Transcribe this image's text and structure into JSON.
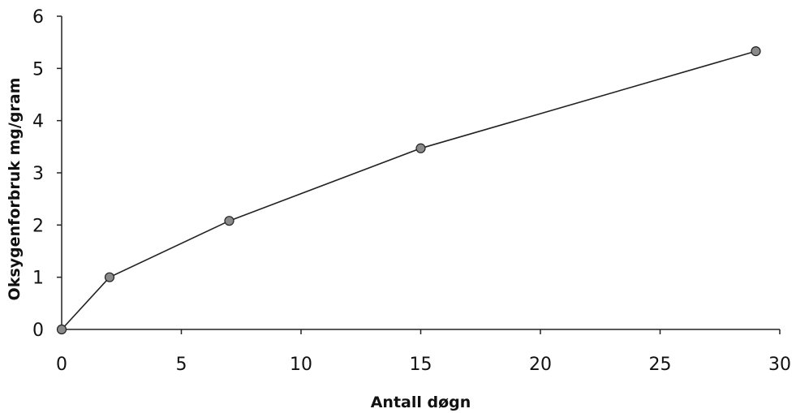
{
  "chart_data": {
    "type": "line",
    "title": "",
    "xlabel": "Antall døgn",
    "ylabel": "Oksygenforbruk mg/gram",
    "xlim": [
      0,
      30
    ],
    "ylim": [
      0,
      6
    ],
    "x_ticks": [
      0,
      5,
      10,
      15,
      20,
      25,
      30
    ],
    "y_ticks": [
      0,
      1,
      2,
      3,
      4,
      5,
      6
    ],
    "grid": false,
    "legend": "none",
    "series": [
      {
        "x": [
          0,
          2,
          7,
          15,
          29
        ],
        "values": [
          0,
          1.0,
          2.08,
          3.47,
          5.33
        ]
      }
    ],
    "colors": {
      "line": "#222222",
      "marker_fill": "#8a8a8a",
      "text": "#111111"
    }
  }
}
